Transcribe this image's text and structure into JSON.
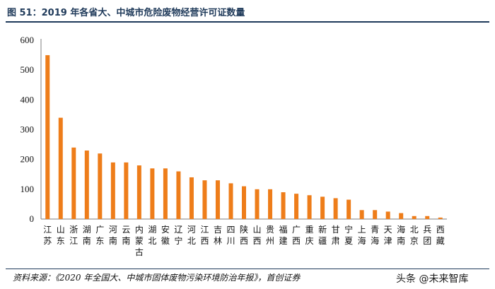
{
  "header": {
    "title": "图 51：2019 年各省大、中城市危险废物经营许可证数量"
  },
  "footer": {
    "source": "资料来源：《2020 年全国大、中城市固体废物污染环境防治年报》，首创证券",
    "watermark": "头条 @未来智库"
  },
  "chart_data": {
    "type": "bar",
    "title": "",
    "xlabel": "",
    "ylabel": "",
    "ylim": [
      0,
      600
    ],
    "yticks": [
      0,
      100,
      200,
      300,
      400,
      500,
      600
    ],
    "grid": false,
    "bar_color": "#ee7d1a",
    "categories": [
      "江苏",
      "山东",
      "浙江",
      "湖南",
      "广东",
      "河南",
      "云南",
      "内蒙古",
      "湖北",
      "安徽",
      "辽宁",
      "河北",
      "江西",
      "吉林",
      "四川",
      "陕西",
      "山西",
      "贵州",
      "福建",
      "广西",
      "重庆",
      "新疆",
      "甘肃",
      "宁夏",
      "上海",
      "青海",
      "天津",
      "海南",
      "北京",
      "兵团",
      "西藏"
    ],
    "values": [
      550,
      340,
      240,
      230,
      220,
      190,
      190,
      180,
      170,
      170,
      160,
      140,
      130,
      130,
      120,
      110,
      100,
      100,
      90,
      85,
      80,
      75,
      70,
      65,
      30,
      30,
      25,
      20,
      10,
      10,
      5
    ]
  }
}
